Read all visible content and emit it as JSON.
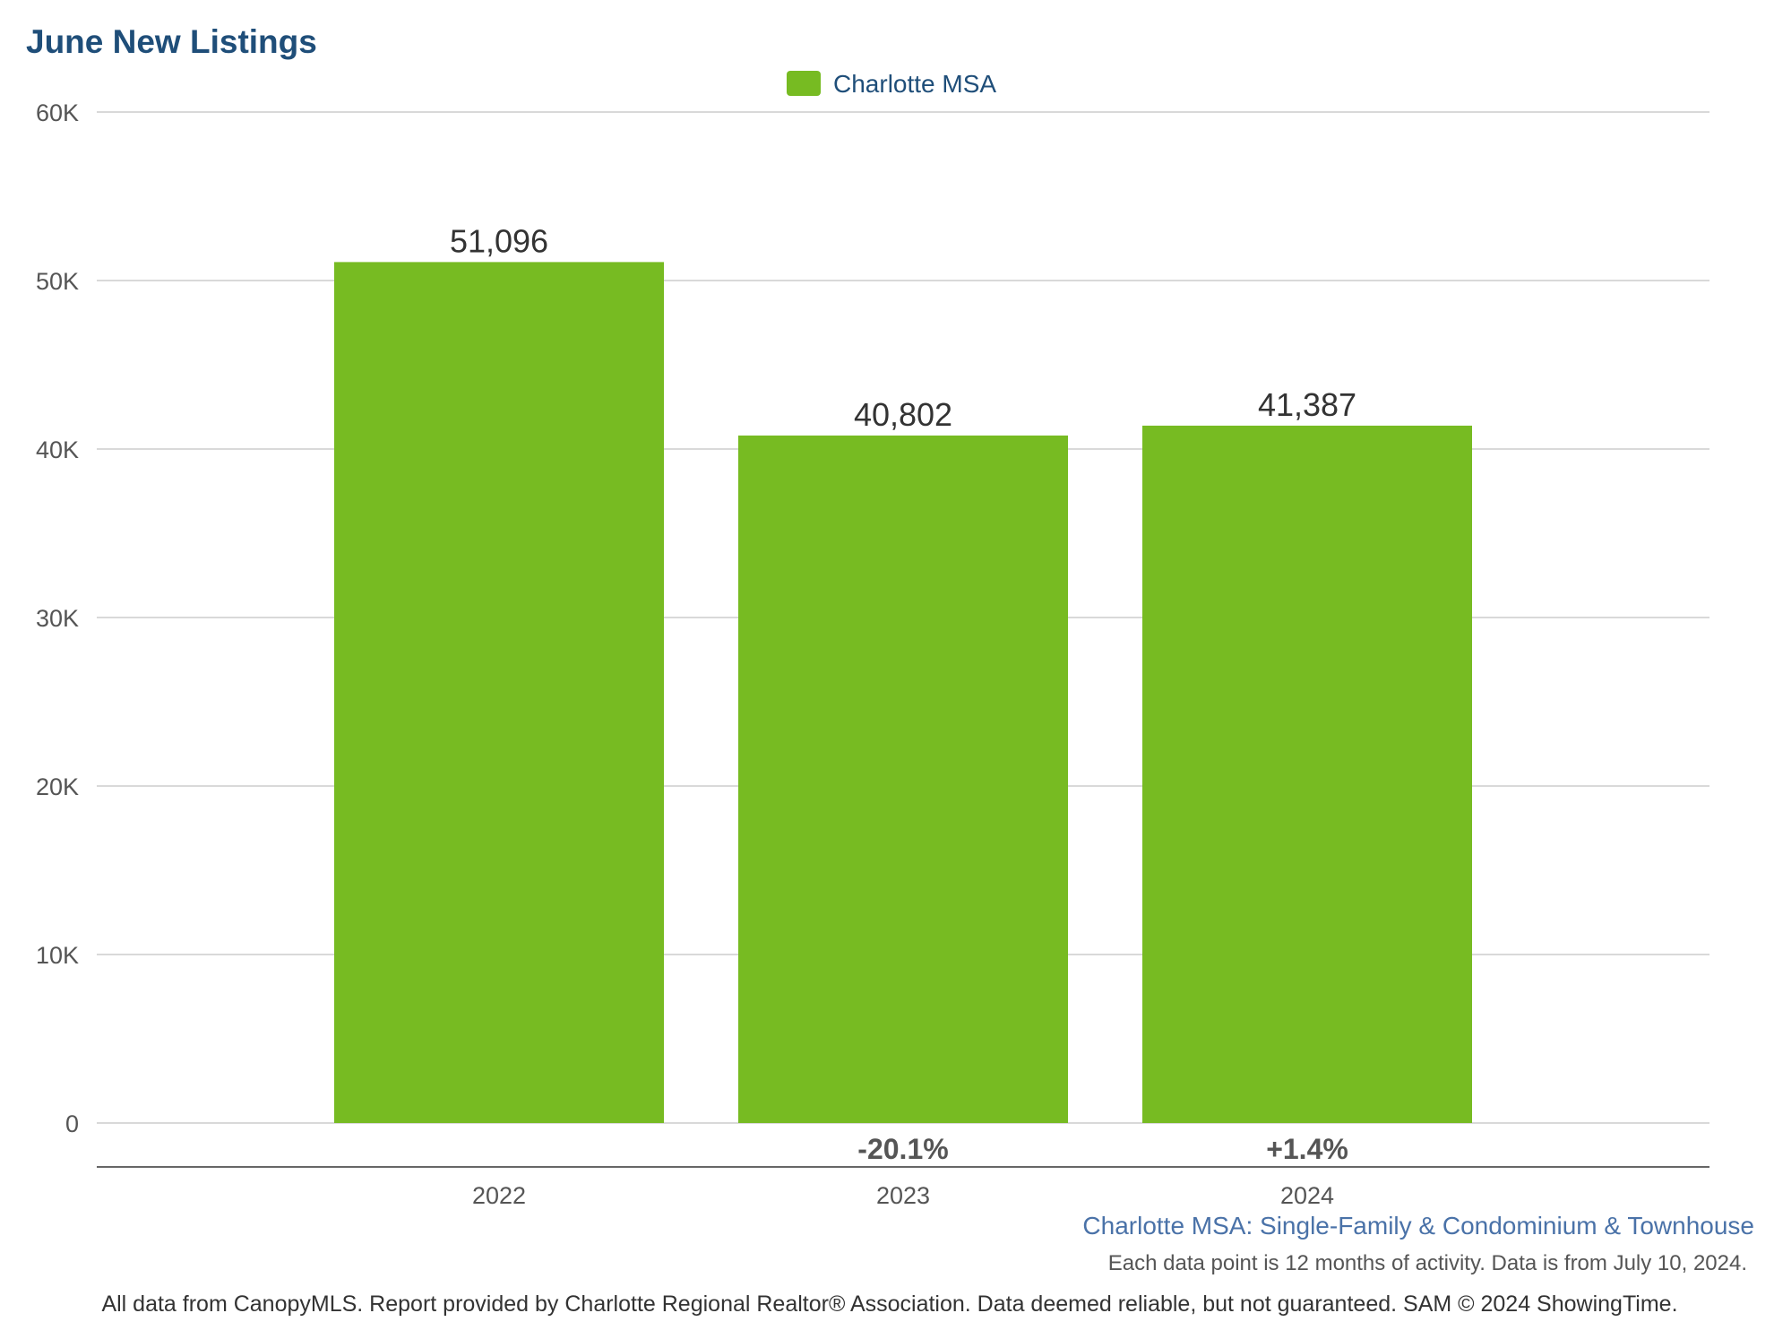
{
  "chart_data": {
    "type": "bar",
    "title": "June New Listings",
    "categories": [
      "2022",
      "2023",
      "2024"
    ],
    "series": [
      {
        "name": "Charlotte MSA",
        "values": [
          51096,
          40802,
          41387
        ],
        "color": "#77bb22"
      }
    ],
    "value_labels": [
      "51,096",
      "40,802",
      "41,387"
    ],
    "change_labels": [
      "",
      "-20.1%",
      "+1.4%"
    ],
    "ylim": [
      0,
      60000
    ],
    "yticks": [
      0,
      10000,
      20000,
      30000,
      40000,
      50000,
      60000
    ],
    "ytick_labels": [
      "0",
      "10K",
      "20K",
      "30K",
      "40K",
      "50K",
      "60K"
    ],
    "grid": true,
    "legend_position": "top-center",
    "xlabel": "",
    "ylabel": ""
  },
  "subtitle": "Charlotte MSA: Single-Family & Condominium & Townhouse",
  "note": "Each data point is 12 months of activity. Data is from July 10, 2024.",
  "footer": "All data from CanopyMLS. Report provided by Charlotte Regional Realtor® Association. Data deemed reliable, but not guaranteed. SAM © 2024 ShowingTime.",
  "colors": {
    "title": "#1f4e79",
    "bar": "#77bb22",
    "subtitle": "#4a72a8",
    "grid": "#d9d9d9"
  }
}
